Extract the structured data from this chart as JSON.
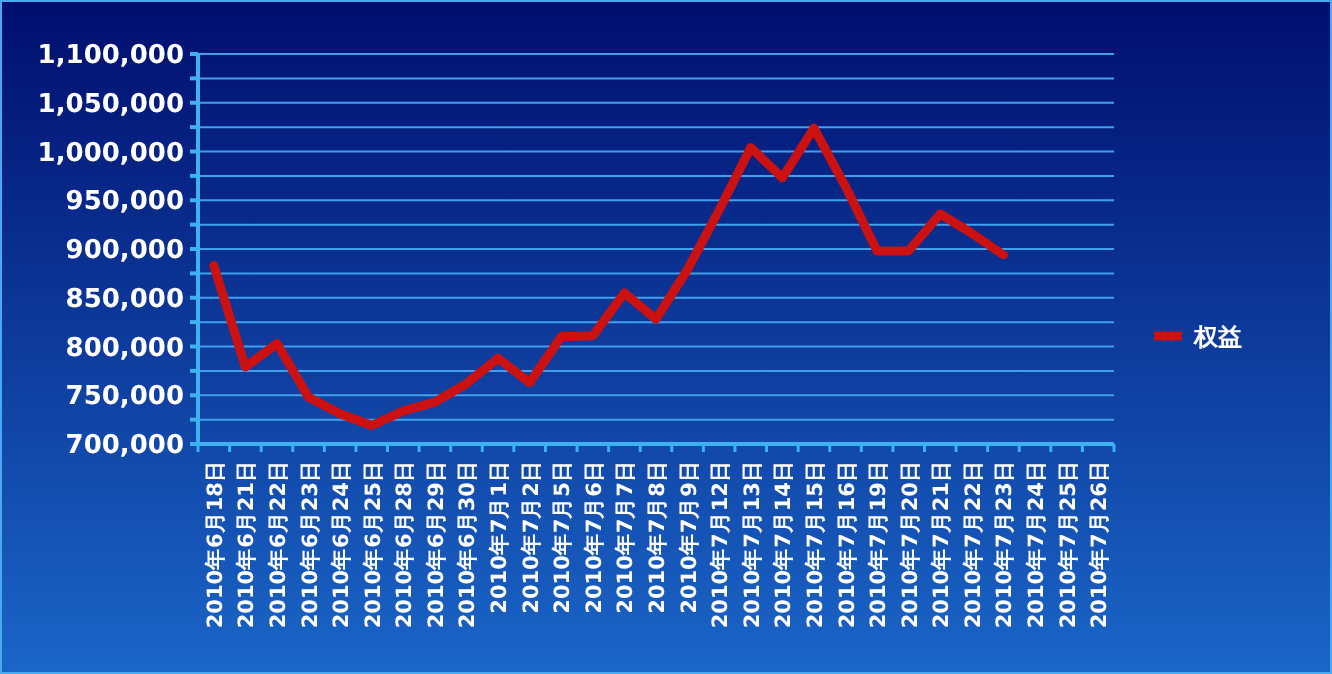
{
  "chart_data": {
    "type": "line",
    "categories": [
      "2010年6月18日",
      "2010年6月21日",
      "2010年6月22日",
      "2010年6月23日",
      "2010年6月24日",
      "2010年6月25日",
      "2010年6月28日",
      "2010年6月29日",
      "2010年6月30日",
      "2010年7月1日",
      "2010年7月2日",
      "2010年7月5日",
      "2010年7月6日",
      "2010年7月7日",
      "2010年7月8日",
      "2010年7月9日",
      "2010年7月12日",
      "2010年7月13日",
      "2010年7月14日",
      "2010年7月15日",
      "2010年7月16日",
      "2010年7月19日",
      "2010年7月20日",
      "2010年7月21日",
      "2010年7月22日",
      "2010年7月23日",
      "2010年7月24日",
      "2010年7月25日",
      "2010年7月26日"
    ],
    "series": [
      {
        "name": "权益",
        "color": "#cc1111",
        "values": [
          883000,
          779000,
          803000,
          748000,
          731000,
          719000,
          734000,
          743000,
          762000,
          788000,
          763000,
          810000,
          811000,
          855000,
          828000,
          879000,
          940000,
          1004000,
          973000,
          1024000,
          964000,
          898000,
          898000,
          936000,
          916000,
          894000,
          null,
          null,
          null
        ]
      }
    ],
    "ylim": [
      700000,
      1100000
    ],
    "yticks": [
      {
        "value": 700000,
        "label": "700,000"
      },
      {
        "value": 725000,
        "label": null
      },
      {
        "value": 750000,
        "label": "750,000"
      },
      {
        "value": 775000,
        "label": null
      },
      {
        "value": 800000,
        "label": "800,000"
      },
      {
        "value": 825000,
        "label": null
      },
      {
        "value": 850000,
        "label": "850,000"
      },
      {
        "value": 875000,
        "label": null
      },
      {
        "value": 900000,
        "label": "900,000"
      },
      {
        "value": 925000,
        "label": null
      },
      {
        "value": 950000,
        "label": "950,000"
      },
      {
        "value": 975000,
        "label": null
      },
      {
        "value": 1000000,
        "label": "1,000,000"
      },
      {
        "value": 1025000,
        "label": null
      },
      {
        "value": 1050000,
        "label": "1,050,000"
      },
      {
        "value": 1075000,
        "label": null
      },
      {
        "value": 1100000,
        "label": "1,100,000"
      }
    ],
    "grid": "y",
    "legend": "right",
    "marker": "none",
    "line_style": "solid"
  }
}
